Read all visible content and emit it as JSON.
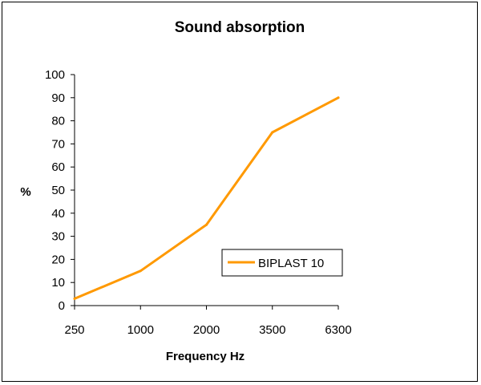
{
  "chart_data": {
    "type": "line",
    "title": "Sound absorption",
    "xlabel": "Frequency Hz",
    "ylabel": "%",
    "categories": [
      "250",
      "1000",
      "2000",
      "3500",
      "6300"
    ],
    "series": [
      {
        "name": "BIPLAST 10",
        "values": [
          3,
          15,
          35,
          75,
          90
        ],
        "color": "#ff9900"
      }
    ],
    "ylim": [
      0,
      100
    ],
    "yticks": [
      0,
      10,
      20,
      30,
      40,
      50,
      60,
      70,
      80,
      90,
      100
    ],
    "grid": false,
    "legend": "bottom-right"
  }
}
